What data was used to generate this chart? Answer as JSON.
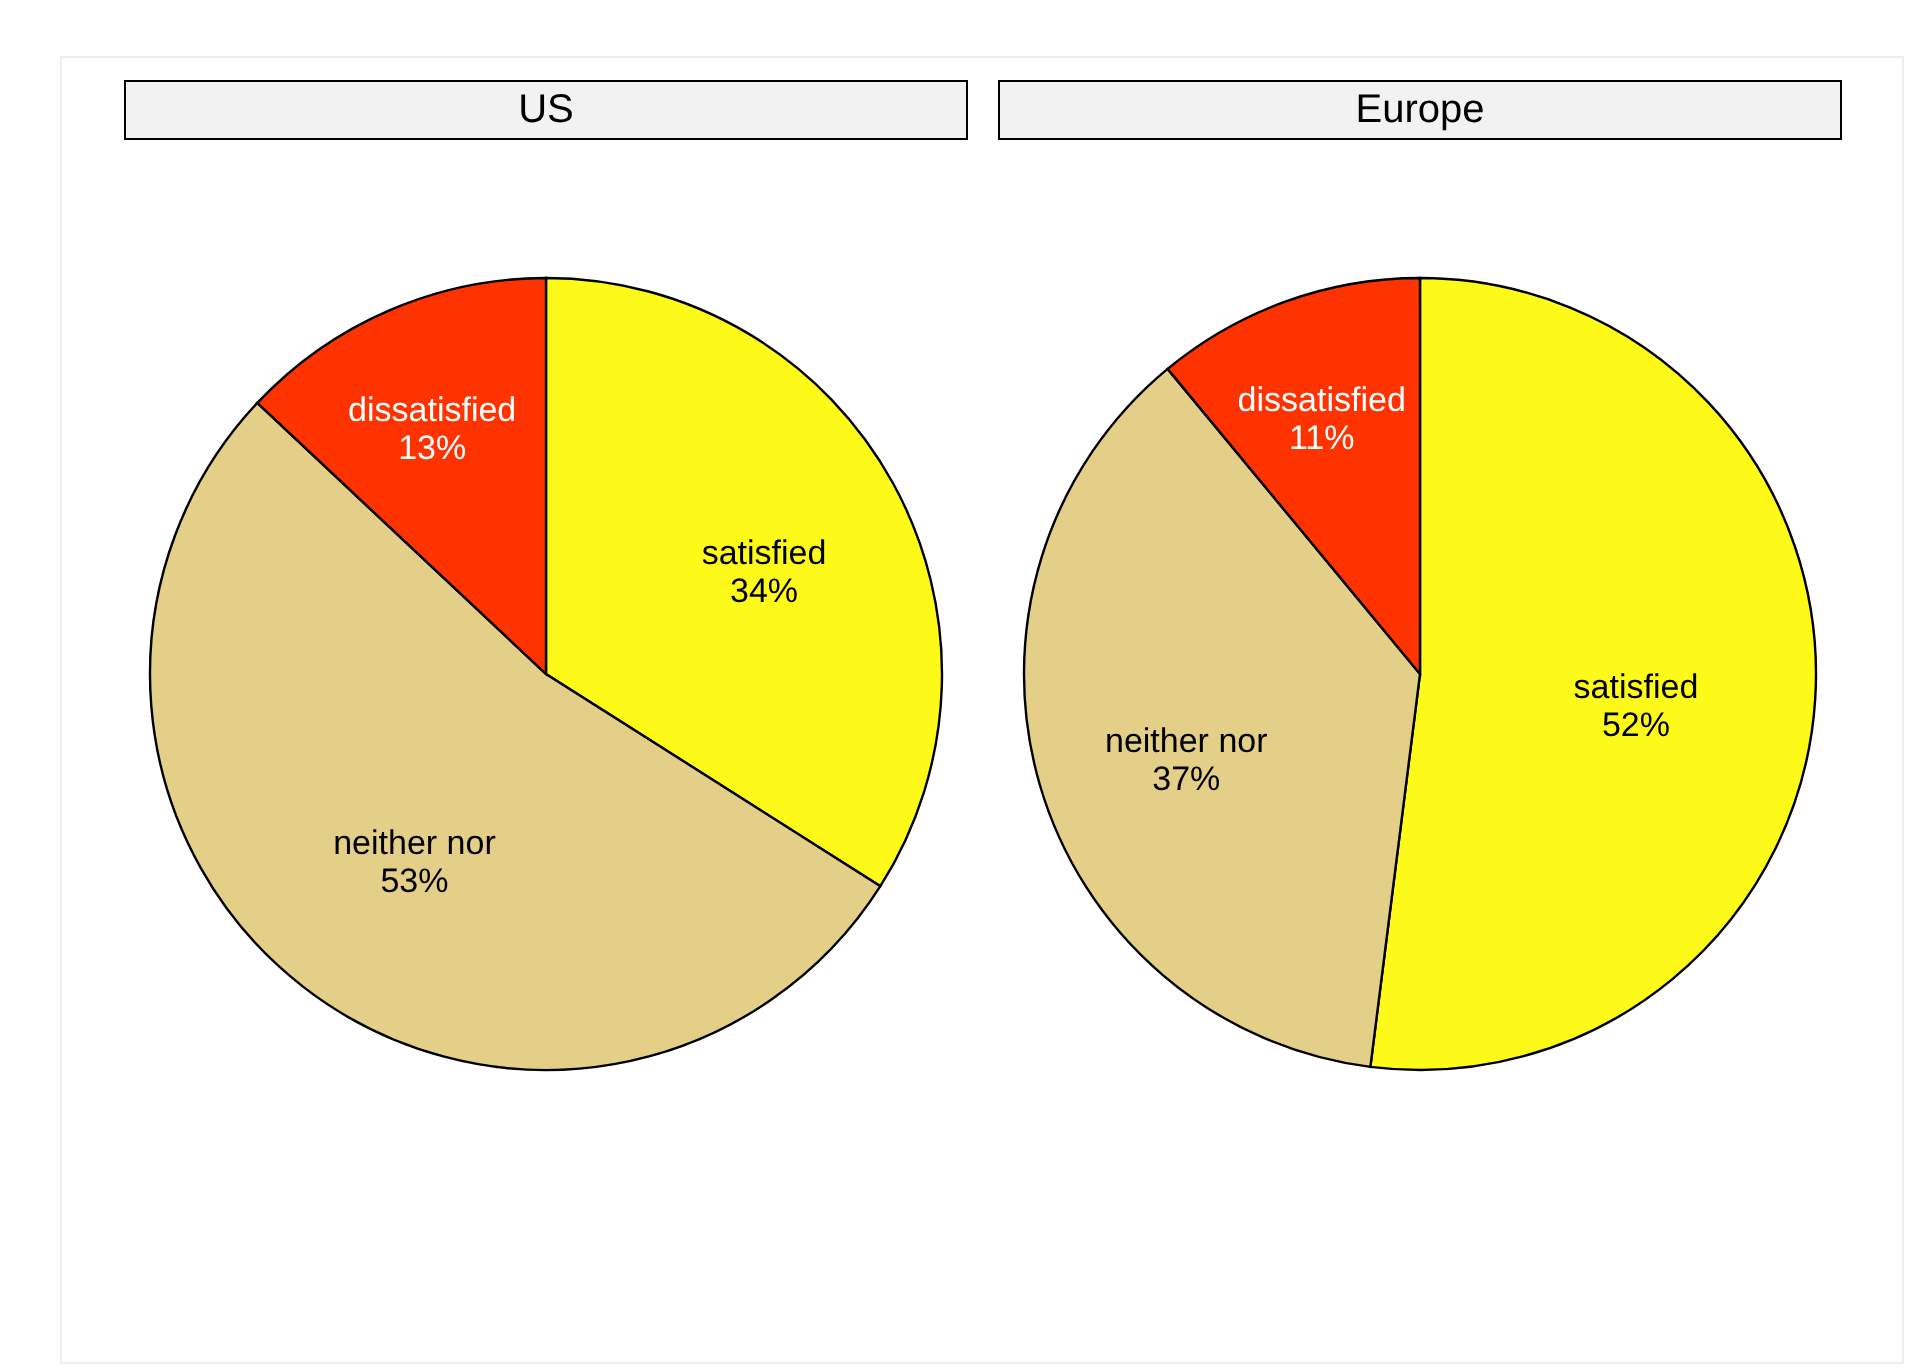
{
  "chart_data": [
    {
      "type": "pie",
      "title": "US",
      "categories": [
        "satisfied",
        "neither nor",
        "dissatisfied"
      ],
      "values": [
        34,
        53,
        13
      ],
      "colors": [
        "#fdfa1a",
        "#e3cf88",
        "#ff3300"
      ],
      "value_labels": [
        "34%",
        "53%",
        "13%"
      ]
    },
    {
      "type": "pie",
      "title": "Europe",
      "categories": [
        "satisfied",
        "neither nor",
        "dissatisfied"
      ],
      "values": [
        52,
        37,
        11
      ],
      "colors": [
        "#fdfa1a",
        "#e3cf88",
        "#ff3300"
      ],
      "value_labels": [
        "52%",
        "37%",
        "11%"
      ]
    }
  ]
}
